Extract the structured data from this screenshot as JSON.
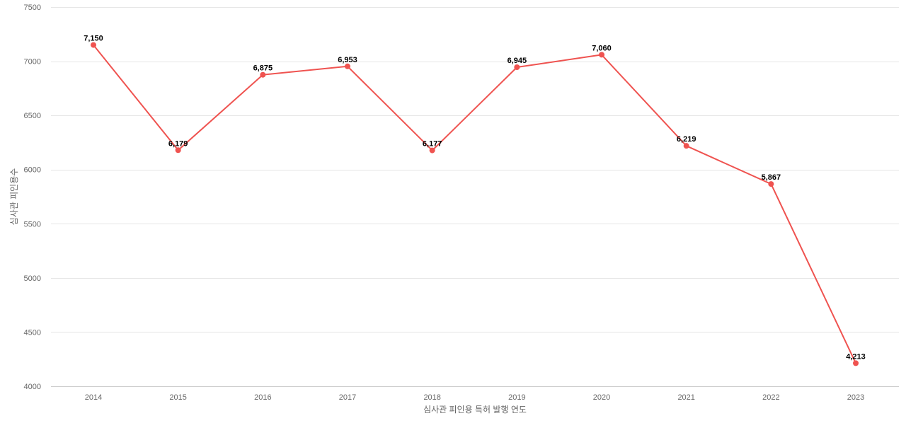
{
  "chart_data": {
    "type": "line",
    "title": "",
    "xlabel": "심사관 피인용 특허 발행 연도",
    "ylabel": "심사관 피인용수",
    "x": [
      "2014",
      "2015",
      "2016",
      "2017",
      "2018",
      "2019",
      "2020",
      "2021",
      "2022",
      "2023"
    ],
    "series": [
      {
        "values": [
          7150,
          6179,
          6875,
          6953,
          6177,
          6945,
          7060,
          6219,
          5867,
          4213
        ],
        "labels": [
          "7,150",
          "6,179",
          "6,875",
          "6,953",
          "6,177",
          "6,945",
          "7,060",
          "6,219",
          "5,867",
          "4,213"
        ],
        "color": "#ef5350"
      }
    ],
    "ylim": [
      4000,
      7500
    ],
    "yticks": [
      "4000",
      "4500",
      "5000",
      "5500",
      "6000",
      "6500",
      "7000",
      "7500"
    ],
    "ytick_values": [
      4000,
      4500,
      5000,
      5500,
      6000,
      6500,
      7000,
      7500
    ],
    "grid": true,
    "legend": "none"
  }
}
